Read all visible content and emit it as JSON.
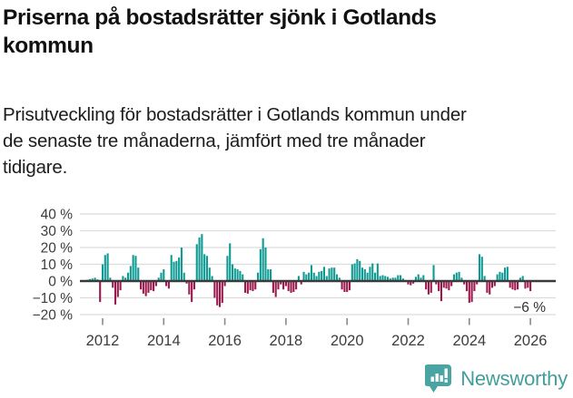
{
  "headline": "Priserna på bostadsrätter sjönk i Gotlands\nkommun",
  "description": "Prisutveckling för bostadsrätter i Gotlands kommun under\nde senaste tre månaderna, jämfört med tre månader\ntidigare.",
  "brand": {
    "name": "Newsworthy",
    "badge_color": "#4aa5a2",
    "text_color": "#429e9b"
  },
  "chart_data": {
    "type": "bar",
    "title": "",
    "xlabel": "",
    "ylabel": "",
    "unit": "%",
    "frequency": "monthly",
    "start": "2011-06",
    "end": "2026-01",
    "ylim": [
      -20,
      40
    ],
    "grid": true,
    "legend": "none",
    "positive_color": "#0f9b94",
    "negative_color": "#9b1a4e",
    "axis_text_color": "#3c3c3c",
    "gridline_color": "#dcdcdc",
    "zeroline_color": "#3a3a3a",
    "yticks": [
      40,
      30,
      20,
      10,
      0,
      -10,
      -20
    ],
    "ytick_labels": [
      "40 %",
      "30 %",
      "20 %",
      "10 %",
      "0 %",
      "−10 %",
      "−20 %"
    ],
    "xticks": [
      2012,
      2014,
      2016,
      2018,
      2020,
      2022,
      2024,
      2026
    ],
    "annotation": {
      "text": "−6 %",
      "value": -6,
      "date": "2026-01"
    },
    "values": [
      0.5,
      0.8,
      1.2,
      1.5,
      2,
      1,
      -12.5,
      10,
      15.5,
      16.5,
      2,
      -4,
      -14,
      -9.5,
      -5.5,
      3,
      2,
      5,
      9,
      15.5,
      15,
      8,
      -5,
      -7.5,
      -9,
      -7,
      -5.5,
      -6,
      -3,
      2,
      5,
      7,
      -3,
      -4.5,
      15.5,
      11.5,
      12,
      14,
      20,
      5,
      -1.5,
      -8,
      -12.5,
      -5,
      22,
      26,
      28,
      16,
      15,
      8,
      3,
      -10,
      -14.5,
      -15.5,
      -13,
      -3,
      15,
      22.5,
      10,
      7.5,
      7,
      6,
      4,
      -7,
      -7.5,
      -5.5,
      -6,
      -5,
      5,
      19,
      25.5,
      20,
      7,
      7,
      -7,
      -9.5,
      -5,
      -2,
      -5,
      -3,
      -6,
      -7,
      -6.5,
      -5,
      3,
      -2,
      5.5,
      4,
      5,
      9.5,
      5,
      3,
      5.5,
      6,
      8.5,
      3,
      7.5,
      8,
      8,
      4,
      2,
      -5,
      -6.5,
      -6.5,
      -5.5,
      10,
      10.5,
      13,
      12,
      8,
      7,
      5,
      8.5,
      10.5,
      5,
      10.5,
      3,
      3.5,
      3,
      2.5,
      1.5,
      2,
      2,
      3.5,
      3.5,
      1.5,
      0.5,
      -2,
      -2.5,
      -1.5,
      2.5,
      4,
      2,
      3.5,
      -5,
      -8,
      -7,
      9.5,
      -2,
      -6,
      -12,
      -4,
      -4.5,
      -5.5,
      -3,
      4,
      5,
      5.5,
      2,
      -2,
      -6,
      -13,
      -12.5,
      -6,
      -2,
      16,
      14.5,
      3,
      -7,
      -8,
      -4,
      -3,
      4,
      5.5,
      5,
      8,
      8.5,
      -4,
      -5,
      -5.5,
      -5,
      2,
      3,
      -4.5,
      -4,
      -6
    ]
  }
}
